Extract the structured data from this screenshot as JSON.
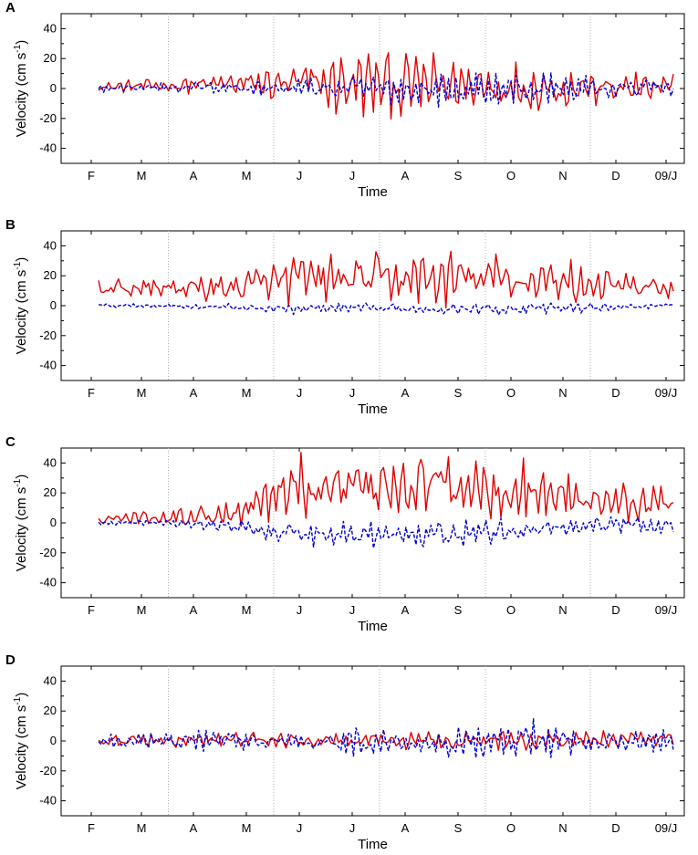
{
  "figure": {
    "time_tick_labels": [
      "F",
      "M",
      "A",
      "M",
      "J",
      "J",
      "A",
      "S",
      "O",
      "N",
      "D",
      "09/J"
    ],
    "y_tick_labels": [
      "40",
      "20",
      "0",
      "-20",
      "-40"
    ],
    "xlabel": "Time",
    "ylabel_main": "Velocity (cm s",
    "ylabel_sup": "-1",
    "ylabel_close": ")",
    "colors": {
      "series_1": "#e00000",
      "series_2": "#0000d0",
      "gridline": "#b0b0b0"
    }
  },
  "chart_data": [
    {
      "panel": "A",
      "type": "line",
      "xlabel": "Time",
      "ylabel": "Velocity (cm s-1)",
      "ylim": [
        -50,
        50
      ],
      "xlim": [
        0,
        11.5
      ],
      "series": [
        {
          "name": "solid red",
          "style": "solid",
          "color": "#e00000",
          "amplitude": [
            3,
            4,
            6,
            12,
            20,
            18,
            15,
            14,
            10,
            8
          ],
          "mean": [
            1,
            2,
            3,
            3,
            3,
            2,
            2,
            1,
            0,
            0
          ]
        },
        {
          "name": "dashed blue",
          "style": "dashed",
          "color": "#0000d0",
          "amplitude": [
            2,
            3,
            4,
            6,
            8,
            9,
            10,
            9,
            7,
            5
          ],
          "mean": [
            0,
            1,
            1,
            0,
            0,
            -1,
            -1,
            0,
            0,
            1
          ]
        }
      ]
    },
    {
      "panel": "B",
      "type": "line",
      "xlabel": "Time",
      "ylabel": "Velocity (cm s-1)",
      "ylim": [
        -50,
        50
      ],
      "xlim": [
        0,
        11.5
      ],
      "series": [
        {
          "name": "solid red",
          "style": "solid",
          "color": "#e00000",
          "amplitude": [
            5,
            6,
            8,
            14,
            15,
            15,
            16,
            16,
            9,
            6
          ],
          "mean": [
            11,
            12,
            12,
            17,
            18,
            18,
            18,
            17,
            13,
            11
          ]
        },
        {
          "name": "dashed blue",
          "style": "dashed",
          "color": "#0000d0",
          "amplitude": [
            1,
            1,
            2,
            3,
            3,
            3,
            3,
            4,
            2,
            1
          ],
          "mean": [
            0,
            0,
            -1,
            -2,
            -2,
            -2,
            -2,
            -2,
            -1,
            0
          ]
        }
      ]
    },
    {
      "panel": "C",
      "type": "line",
      "xlabel": "Time",
      "ylabel": "Velocity (cm s-1)",
      "ylim": [
        -50,
        50
      ],
      "xlim": [
        0,
        11.5
      ],
      "series": [
        {
          "name": "solid red",
          "style": "solid",
          "color": "#e00000",
          "amplitude": [
            3,
            4,
            8,
            18,
            20,
            20,
            20,
            16,
            12,
            10
          ],
          "mean": [
            3,
            4,
            6,
            24,
            26,
            26,
            26,
            20,
            14,
            12
          ]
        },
        {
          "name": "dashed blue",
          "style": "dashed",
          "color": "#0000d0",
          "amplitude": [
            1,
            2,
            3,
            7,
            8,
            9,
            8,
            6,
            5,
            5
          ],
          "mean": [
            0,
            0,
            -2,
            -7,
            -8,
            -9,
            -6,
            -3,
            -1,
            -2
          ]
        }
      ]
    },
    {
      "panel": "D",
      "type": "line",
      "xlabel": "Time",
      "ylabel": "Velocity (cm s-1)",
      "ylim": [
        -50,
        50
      ],
      "xlim": [
        0,
        11.5
      ],
      "series": [
        {
          "name": "solid red",
          "style": "solid",
          "color": "#e00000",
          "amplitude": [
            3,
            4,
            5,
            4,
            4,
            5,
            5,
            6,
            5,
            4
          ],
          "mean": [
            0,
            0,
            1,
            0,
            0,
            0,
            0,
            1,
            1,
            0
          ]
        },
        {
          "name": "dashed blue",
          "style": "dashed",
          "color": "#0000d0",
          "amplitude": [
            4,
            5,
            8,
            4,
            8,
            7,
            9,
            12,
            7,
            6
          ],
          "mean": [
            0,
            0,
            0,
            0,
            -1,
            -1,
            0,
            2,
            0,
            0
          ]
        }
      ]
    }
  ]
}
